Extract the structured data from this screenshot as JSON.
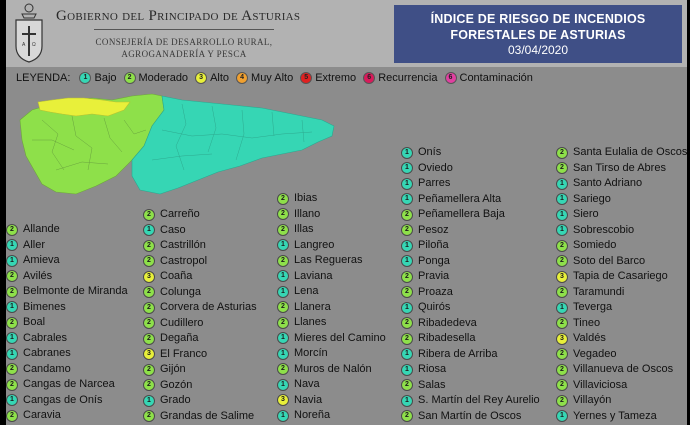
{
  "header": {
    "gov_title": "Gobierno del Principado de Asturias",
    "gov_sub_1": "Consejería de Desarrollo Rural,",
    "gov_sub_2": "Agroganadería y Pesca",
    "title_1": "ÍNDICE DE RIESGO DE INCENDIOS",
    "title_2": "FORESTALES DE ASTURIAS",
    "date": "03/04/2020"
  },
  "legend": {
    "label": "LEYENDA:",
    "items": [
      {
        "num": "1",
        "label": "Bajo",
        "color": "#36d6b4"
      },
      {
        "num": "2",
        "label": "Moderado",
        "color": "#8ee04a"
      },
      {
        "num": "3",
        "label": "Alto",
        "color": "#e8f03a"
      },
      {
        "num": "4",
        "label": "Muy Alto",
        "color": "#f0a030"
      },
      {
        "num": "5",
        "label": "Extremo",
        "color": "#e02020"
      },
      {
        "num": "6",
        "label": "Recurrencia",
        "color": "#d81a5a"
      },
      {
        "num": "6",
        "label": "Contaminación",
        "color": "#e040a0"
      }
    ]
  },
  "colors": {
    "bajo": "#36d6b4",
    "moderado": "#8ee04a",
    "alto": "#e8f03a",
    "background": "#8c8c8c",
    "title_bg": "#3f4f86"
  },
  "columns": [
    [
      {
        "level": "2",
        "name": "Allande"
      },
      {
        "level": "1",
        "name": "Aller"
      },
      {
        "level": "1",
        "name": "Amieva"
      },
      {
        "level": "2",
        "name": "Avilés"
      },
      {
        "level": "2",
        "name": "Belmonte de Miranda"
      },
      {
        "level": "1",
        "name": "Bimenes"
      },
      {
        "level": "2",
        "name": "Boal"
      },
      {
        "level": "1",
        "name": "Cabrales"
      },
      {
        "level": "1",
        "name": "Cabranes"
      },
      {
        "level": "2",
        "name": "Candamo"
      },
      {
        "level": "2",
        "name": "Cangas de Narcea"
      },
      {
        "level": "1",
        "name": "Cangas de Onís"
      },
      {
        "level": "2",
        "name": "Caravia"
      }
    ],
    [
      {
        "level": "2",
        "name": "Carreño"
      },
      {
        "level": "1",
        "name": "Caso"
      },
      {
        "level": "2",
        "name": "Castrillón"
      },
      {
        "level": "2",
        "name": "Castropol"
      },
      {
        "level": "3",
        "name": "Coaña"
      },
      {
        "level": "2",
        "name": "Colunga"
      },
      {
        "level": "2",
        "name": "Corvera de Asturias"
      },
      {
        "level": "2",
        "name": "Cudillero"
      },
      {
        "level": "2",
        "name": "Degaña"
      },
      {
        "level": "3",
        "name": "El Franco"
      },
      {
        "level": "2",
        "name": "Gijón"
      },
      {
        "level": "2",
        "name": "Gozón"
      },
      {
        "level": "1",
        "name": "Grado"
      },
      {
        "level": "2",
        "name": "Grandas de Salime"
      }
    ],
    [
      {
        "level": "2",
        "name": "Ibias"
      },
      {
        "level": "2",
        "name": "Illano"
      },
      {
        "level": "2",
        "name": "Illas"
      },
      {
        "level": "1",
        "name": "Langreo"
      },
      {
        "level": "2",
        "name": "Las Regueras"
      },
      {
        "level": "1",
        "name": "Laviana"
      },
      {
        "level": "1",
        "name": "Lena"
      },
      {
        "level": "2",
        "name": "Llanera"
      },
      {
        "level": "2",
        "name": "Llanes"
      },
      {
        "level": "1",
        "name": "Mieres del Camino"
      },
      {
        "level": "1",
        "name": "Morcín"
      },
      {
        "level": "2",
        "name": "Muros de Nalón"
      },
      {
        "level": "1",
        "name": "Nava"
      },
      {
        "level": "3",
        "name": "Navia"
      },
      {
        "level": "1",
        "name": "Noreña"
      }
    ],
    [
      {
        "level": "1",
        "name": "Onís"
      },
      {
        "level": "1",
        "name": "Oviedo"
      },
      {
        "level": "1",
        "name": "Parres"
      },
      {
        "level": "1",
        "name": "Peñamellera Alta"
      },
      {
        "level": "2",
        "name": "Peñamellera Baja"
      },
      {
        "level": "2",
        "name": "Pesoz"
      },
      {
        "level": "1",
        "name": "Piloña"
      },
      {
        "level": "1",
        "name": "Ponga"
      },
      {
        "level": "2",
        "name": "Pravia"
      },
      {
        "level": "2",
        "name": "Proaza"
      },
      {
        "level": "1",
        "name": "Quirós"
      },
      {
        "level": "2",
        "name": "Ribadedeva"
      },
      {
        "level": "2",
        "name": "Ribadesella"
      },
      {
        "level": "1",
        "name": "Ribera de Arriba"
      },
      {
        "level": "1",
        "name": "Riosa"
      },
      {
        "level": "2",
        "name": "Salas"
      },
      {
        "level": "1",
        "name": "S. Martín del Rey Aurelio"
      },
      {
        "level": "2",
        "name": "San Martín de Oscos"
      }
    ],
    [
      {
        "level": "2",
        "name": "Santa Eulalia de Oscos"
      },
      {
        "level": "2",
        "name": "San Tirso de Abres"
      },
      {
        "level": "1",
        "name": "Santo Adriano"
      },
      {
        "level": "1",
        "name": "Sariego"
      },
      {
        "level": "1",
        "name": "Siero"
      },
      {
        "level": "1",
        "name": "Sobrescobio"
      },
      {
        "level": "2",
        "name": "Somiedo"
      },
      {
        "level": "2",
        "name": "Soto del Barco"
      },
      {
        "level": "3",
        "name": "Tapia de Casariego"
      },
      {
        "level": "2",
        "name": "Taramundi"
      },
      {
        "level": "1",
        "name": "Teverga"
      },
      {
        "level": "2",
        "name": "Tineo"
      },
      {
        "level": "3",
        "name": "Valdés"
      },
      {
        "level": "2",
        "name": "Vegadeo"
      },
      {
        "level": "2",
        "name": "Villanueva de Oscos"
      },
      {
        "level": "2",
        "name": "Villaviciosa"
      },
      {
        "level": "2",
        "name": "Villayón"
      },
      {
        "level": "1",
        "name": "Yernes y Tameza"
      }
    ]
  ]
}
